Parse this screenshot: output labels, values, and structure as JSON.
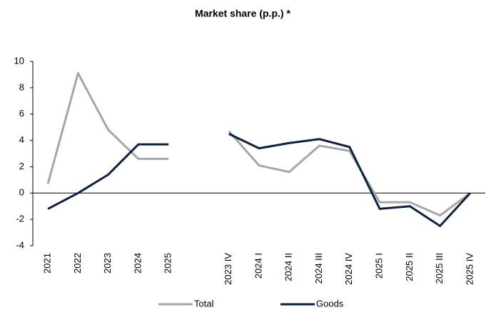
{
  "chart_data": {
    "type": "line",
    "title": "Market share (p.p.) *",
    "categories": [
      "2021",
      "2022",
      "2023",
      "2024",
      "2025",
      null,
      "2023 IV",
      "2024 I",
      "2024 II",
      "2024 III",
      "2024 IV",
      "2025 I",
      "2025 II",
      "2025 III",
      "2025 IV"
    ],
    "series": [
      {
        "name": "Total",
        "color": "#a6a6a6",
        "values": [
          0.7,
          9.1,
          4.8,
          2.6,
          2.6,
          null,
          4.7,
          2.1,
          1.6,
          3.6,
          3.2,
          -0.7,
          -0.7,
          -1.7,
          0.0
        ]
      },
      {
        "name": "Goods",
        "color": "#0d2240",
        "values": [
          -1.2,
          0.0,
          1.4,
          3.7,
          3.7,
          null,
          4.5,
          3.4,
          3.8,
          4.1,
          3.5,
          -1.2,
          -1.0,
          -2.5,
          0.0
        ]
      }
    ],
    "ylim": [
      -4,
      10
    ],
    "yticks": [
      -4,
      -2,
      0,
      2,
      4,
      6,
      8,
      10
    ],
    "grid": false,
    "legend": "bottom"
  }
}
